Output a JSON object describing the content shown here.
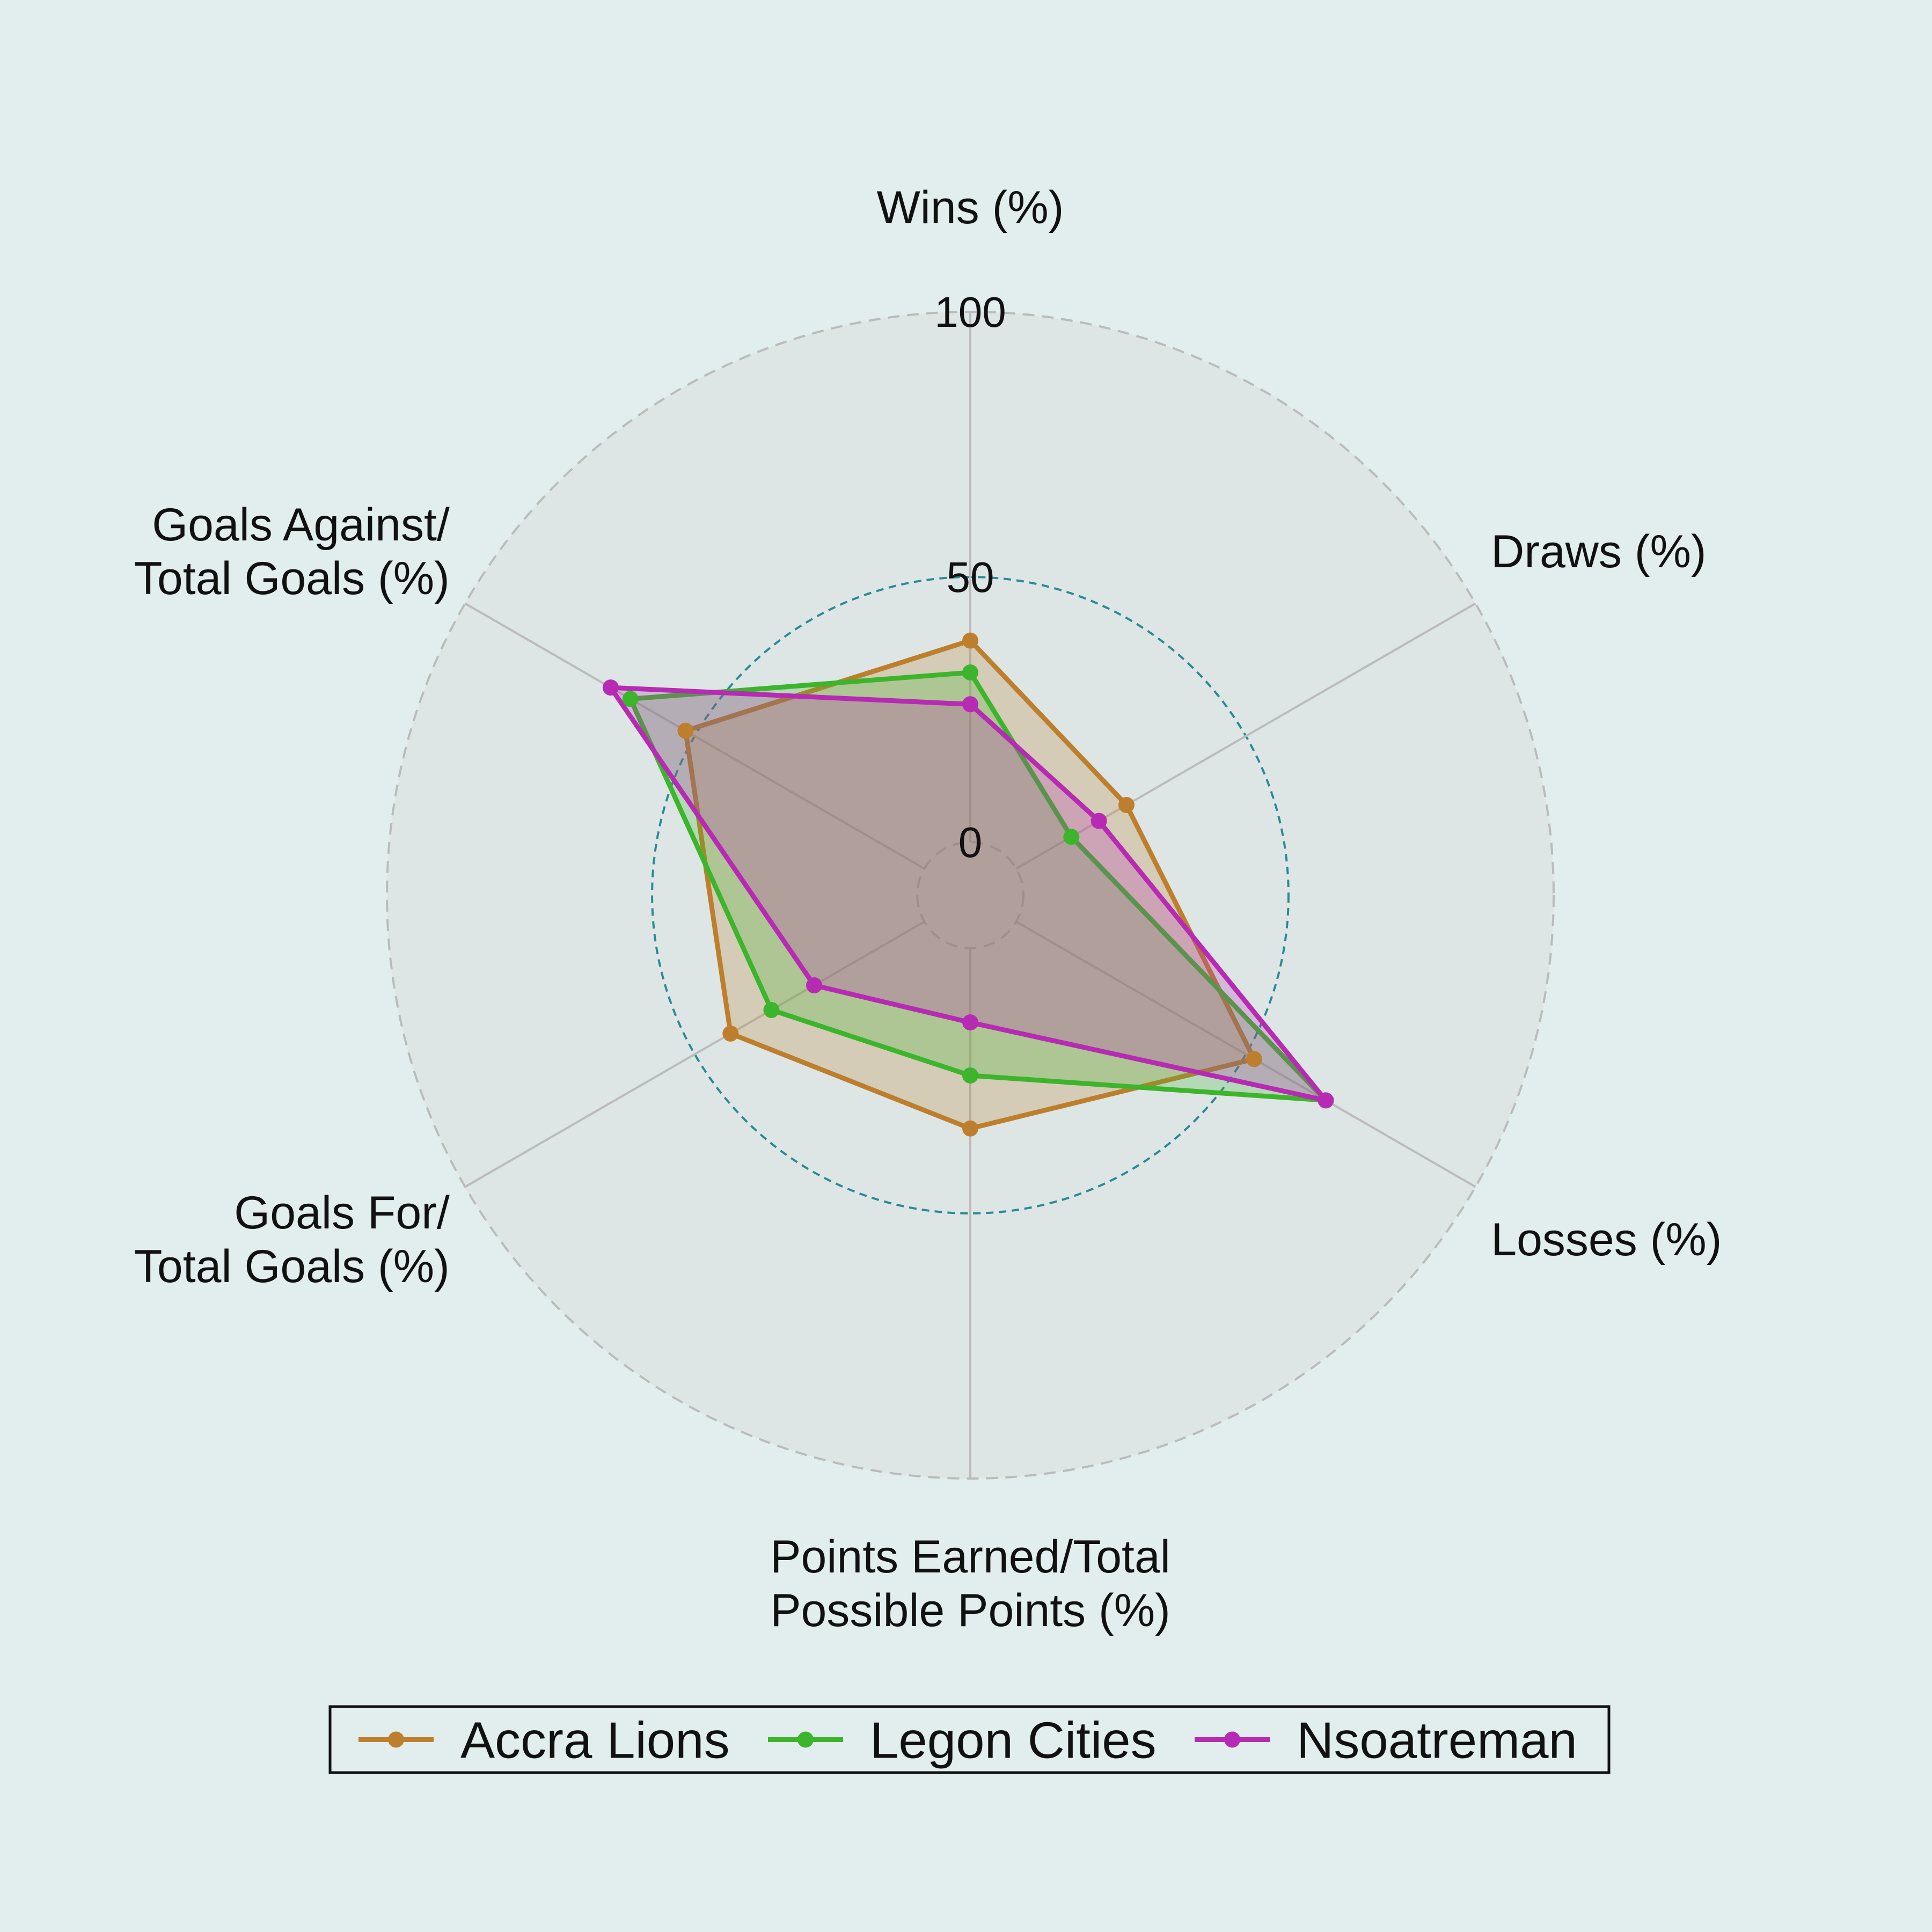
{
  "chart_data": {
    "type": "radar",
    "axes": [
      [
        "Wins (%)"
      ],
      [
        "Draws (%)"
      ],
      [
        "Losses (%)"
      ],
      [
        "Points Earned/Total",
        "Possible Points (%)"
      ],
      [
        "Goals For/",
        "Total Goals (%)"
      ],
      [
        "Goals Against/",
        "Total Goals (%)"
      ]
    ],
    "rlim": [
      -10,
      100
    ],
    "rticks": [
      0,
      50,
      100
    ],
    "rtick_labels": [
      "0",
      "50",
      "100"
    ],
    "highlight_tick": 50,
    "series": [
      {
        "name": "Accra Lions",
        "color": "#bd7f2d",
        "values": [
          38.0,
          24.0,
          51.8,
          34.0,
          42.2,
          52.0
        ]
      },
      {
        "name": "Legon Cities",
        "color": "#3cb52c",
        "values": [
          32.0,
          12.0,
          67.4,
          24.0,
          33.3,
          64.0
        ]
      },
      {
        "name": "Nsoatreman",
        "color": "#b72ab3",
        "values": [
          26.0,
          18.0,
          67.4,
          14.0,
          24.0,
          68.3
        ]
      }
    ],
    "legend_position": "bottom",
    "grid": true
  }
}
